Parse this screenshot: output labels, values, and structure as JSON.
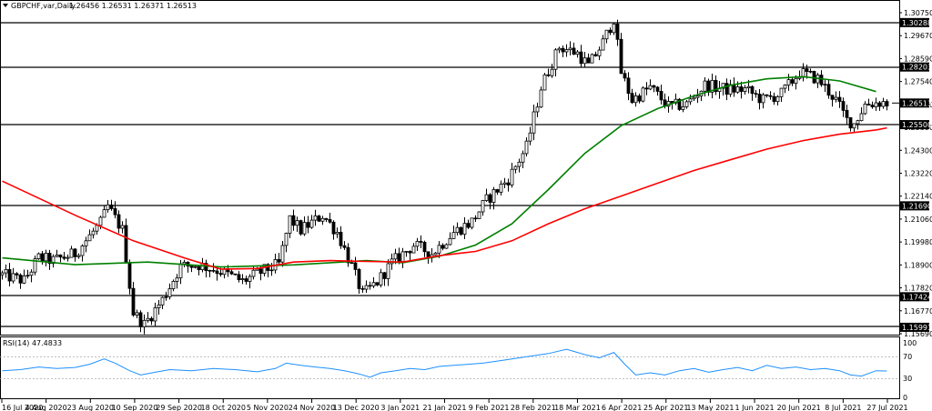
{
  "header": {
    "symbol": "GBPCHF,var,Daily",
    "ohlc": "1.26456 1.26531 1.26371 1.26513"
  },
  "rsi_panel": {
    "label": "RSI(14) 47.4833",
    "levels": [
      "100",
      "70",
      "30",
      "0"
    ]
  },
  "chart_data": [
    {
      "type": "candlestick",
      "title": "",
      "xlabel": "",
      "ylabel": "",
      "grid": false,
      "ylim": [
        1.1569,
        1.3075
      ],
      "y_ticks": [
        "1.30750",
        "1.29670",
        "1.28590",
        "1.27540",
        "1.26470",
        "1.25390",
        "1.24300",
        "1.23220",
        "1.22140",
        "1.21060",
        "1.19980",
        "1.18900",
        "1.17820",
        "1.16770",
        "1.15690"
      ],
      "x_ticks": [
        "16 Jul 2020",
        "4 Aug 2020",
        "23 Aug 2020",
        "10 Sep 2020",
        "29 Sep 2020",
        "18 Oct 2020",
        "5 Nov 2020",
        "24 Nov 2020",
        "13 Dec 2020",
        "3 Jan 2021",
        "21 Jan 2021",
        "9 Feb 2021",
        "28 Feb 2021",
        "18 Mar 2021",
        "6 Apr 2021",
        "25 Apr 2021",
        "13 May 2021",
        "1 Jun 2021",
        "20 Jun 2021",
        "8 Jul 2021",
        "27 Jul 2021"
      ],
      "last_price": {
        "label": "1.26513",
        "value": 1.26513
      },
      "horizontal_levels": [
        {
          "label": "1.30288",
          "value": 1.30288
        },
        {
          "label": "1.28203",
          "value": 1.28203
        },
        {
          "label": "1.25500",
          "value": 1.255
        },
        {
          "label": "1.21690",
          "value": 1.2169
        },
        {
          "label": "1.17424",
          "value": 1.17424
        },
        {
          "label": "1.15991",
          "value": 1.15991
        }
      ],
      "price_path": [
        [
          0,
          1.1845
        ],
        [
          6,
          1.1818
        ],
        [
          10,
          1.1925
        ],
        [
          14,
          1.1912
        ],
        [
          20,
          1.1945
        ],
        [
          27,
          1.2088
        ],
        [
          29,
          1.2165
        ],
        [
          33,
          1.2055
        ],
        [
          36,
          1.1668
        ],
        [
          39,
          1.1612
        ],
        [
          44,
          1.1728
        ],
        [
          49,
          1.1885
        ],
        [
          54,
          1.1892
        ],
        [
          60,
          1.1862
        ],
        [
          66,
          1.1815
        ],
        [
          71,
          1.1858
        ],
        [
          76,
          1.1895
        ],
        [
          79,
          1.2108
        ],
        [
          82,
          1.2055
        ],
        [
          88,
          1.2125
        ],
        [
          92,
          1.2045
        ],
        [
          96,
          1.1885
        ],
        [
          99,
          1.1752
        ],
        [
          103,
          1.1812
        ],
        [
          107,
          1.1902
        ],
        [
          113,
          1.1985
        ],
        [
          118,
          1.1945
        ],
        [
          124,
          1.2045
        ],
        [
          129,
          1.2095
        ],
        [
          133,
          1.2195
        ],
        [
          139,
          1.2295
        ],
        [
          144,
          1.2445
        ],
        [
          148,
          1.2725
        ],
        [
          153,
          1.2915
        ],
        [
          158,
          1.2885
        ],
        [
          161,
          1.2825
        ],
        [
          165,
          1.2935
        ],
        [
          168,
          1.3048
        ],
        [
          170,
          1.2795
        ],
        [
          173,
          1.2665
        ],
        [
          178,
          1.2725
        ],
        [
          183,
          1.2635
        ],
        [
          188,
          1.2645
        ],
        [
          193,
          1.2735
        ],
        [
          199,
          1.2715
        ],
        [
          204,
          1.2715
        ],
        [
          209,
          1.2665
        ],
        [
          214,
          1.2695
        ],
        [
          219,
          1.2795
        ],
        [
          224,
          1.2765
        ],
        [
          229,
          1.2665
        ],
        [
          232,
          1.2572
        ],
        [
          234,
          1.2555
        ],
        [
          237,
          1.2645
        ],
        [
          241,
          1.2655
        ],
        [
          243,
          1.2651
        ]
      ],
      "series": [
        {
          "name": "",
          "color": "#008000",
          "x": [
            0,
            20,
            40,
            60,
            80,
            100,
            110,
            120,
            130,
            140,
            150,
            160,
            170,
            180,
            190,
            200,
            210,
            220,
            230,
            240
          ],
          "values": [
            1.1925,
            1.1893,
            1.1905,
            1.1882,
            1.1892,
            1.1912,
            1.1902,
            1.1932,
            1.1985,
            1.2085,
            1.2245,
            1.2415,
            1.2545,
            1.2625,
            1.2685,
            1.2735,
            1.2765,
            1.2775,
            1.2755,
            1.2705
          ]
        },
        {
          "name": "",
          "color": "#ff0000",
          "x": [
            0,
            20,
            36,
            50,
            60,
            70,
            80,
            90,
            100,
            110,
            120,
            130,
            140,
            150,
            160,
            170,
            180,
            190,
            200,
            210,
            220,
            230,
            240,
            243
          ],
          "values": [
            1.2285,
            1.2125,
            1.2005,
            1.1925,
            1.1872,
            1.1875,
            1.1905,
            1.1912,
            1.1908,
            1.1905,
            1.1935,
            1.1955,
            1.2005,
            1.2085,
            1.2155,
            1.2215,
            1.2275,
            1.2335,
            1.2385,
            1.2435,
            1.2475,
            1.2505,
            1.2525,
            1.2535
          ]
        }
      ]
    },
    {
      "type": "line",
      "title": "RSI(14) 47.4833",
      "ylim": [
        0,
        100
      ],
      "levels": [
        30,
        70
      ],
      "series": [
        {
          "name": "RSI(14)",
          "color": "#1e90ff",
          "x": [
            0,
            5,
            10,
            15,
            20,
            24,
            28,
            31,
            35,
            38,
            42,
            46,
            52,
            58,
            64,
            70,
            75,
            78,
            82,
            86,
            90,
            94,
            98,
            101,
            104,
            108,
            112,
            116,
            120,
            124,
            128,
            132,
            136,
            140,
            145,
            150,
            155,
            160,
            164,
            168,
            171,
            174,
            178,
            182,
            186,
            190,
            194,
            198,
            202,
            206,
            210,
            214,
            218,
            222,
            226,
            230,
            233,
            236,
            240,
            243
          ],
          "values": [
            48,
            50,
            55,
            52,
            54,
            60,
            70,
            62,
            48,
            40,
            45,
            50,
            48,
            52,
            50,
            46,
            52,
            62,
            58,
            55,
            52,
            48,
            42,
            36,
            44,
            48,
            52,
            50,
            56,
            58,
            60,
            62,
            66,
            70,
            75,
            80,
            88,
            78,
            72,
            82,
            60,
            40,
            44,
            40,
            48,
            52,
            45,
            50,
            54,
            48,
            58,
            52,
            55,
            50,
            52,
            48,
            40,
            38,
            48,
            47.5
          ]
        }
      ]
    }
  ]
}
